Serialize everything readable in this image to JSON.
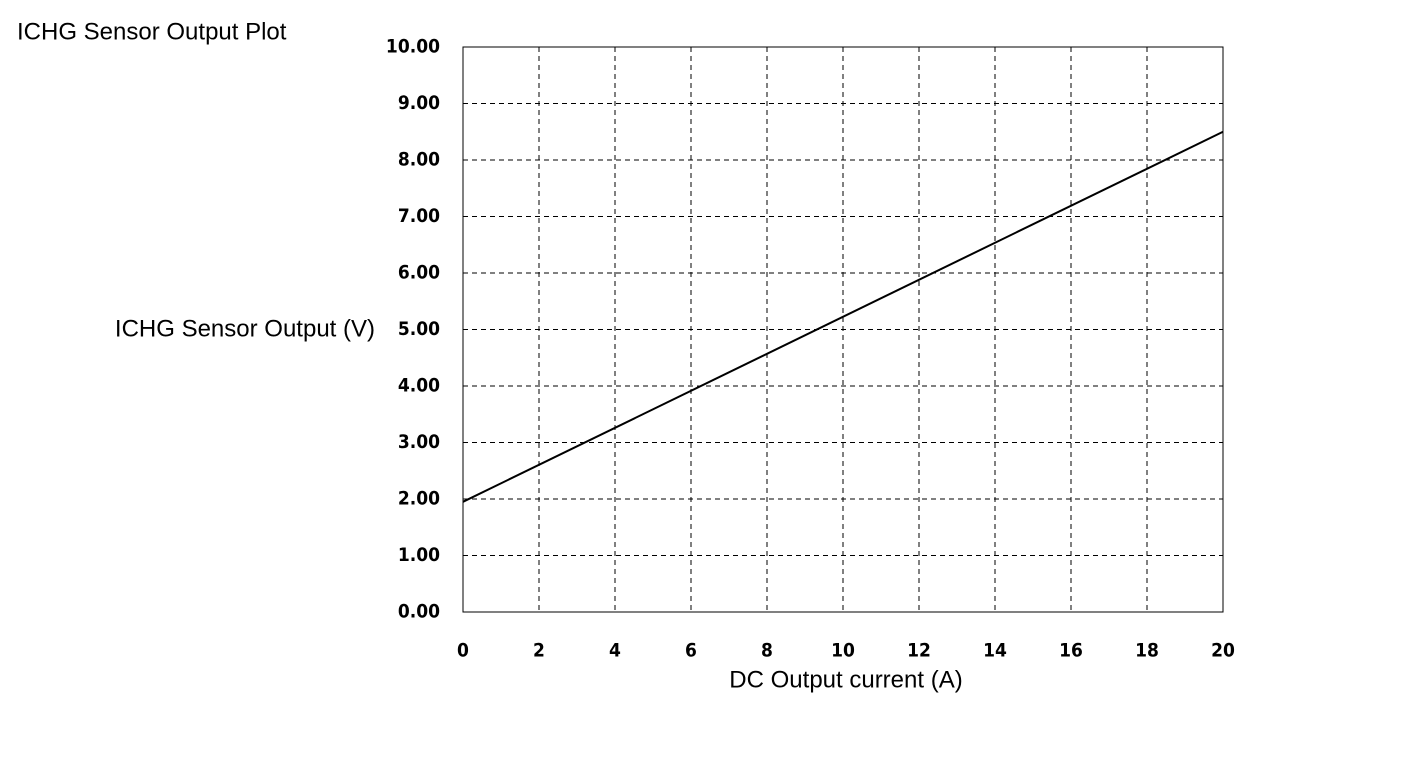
{
  "chart_data": {
    "type": "line",
    "title": "ICHG Sensor Output Plot",
    "x_label": "DC Output current (A)",
    "y_label": "ICHG Sensor Output (V)",
    "x": [
      0,
      20
    ],
    "series": [
      {
        "color": "#000000",
        "values": [
          1.95,
          8.5
        ]
      }
    ],
    "xlim": [
      0,
      20
    ],
    "xticks": [
      0,
      2,
      4,
      6,
      8,
      10,
      12,
      14,
      16,
      18,
      20
    ],
    "ylim": [
      0,
      10
    ],
    "yticks": [
      {
        "value": 0,
        "label": "0.00"
      },
      {
        "value": 1,
        "label": "1.00"
      },
      {
        "value": 2,
        "label": "2.00"
      },
      {
        "value": 3,
        "label": "3.00"
      },
      {
        "value": 4,
        "label": "4.00"
      },
      {
        "value": 5,
        "label": "5.00"
      },
      {
        "value": 6,
        "label": "6.00"
      },
      {
        "value": 7,
        "label": "7.00"
      },
      {
        "value": 8,
        "label": "8.00"
      },
      {
        "value": 9,
        "label": "9.00"
      },
      {
        "value": 10,
        "label": "10.00"
      }
    ],
    "grid": true
  }
}
